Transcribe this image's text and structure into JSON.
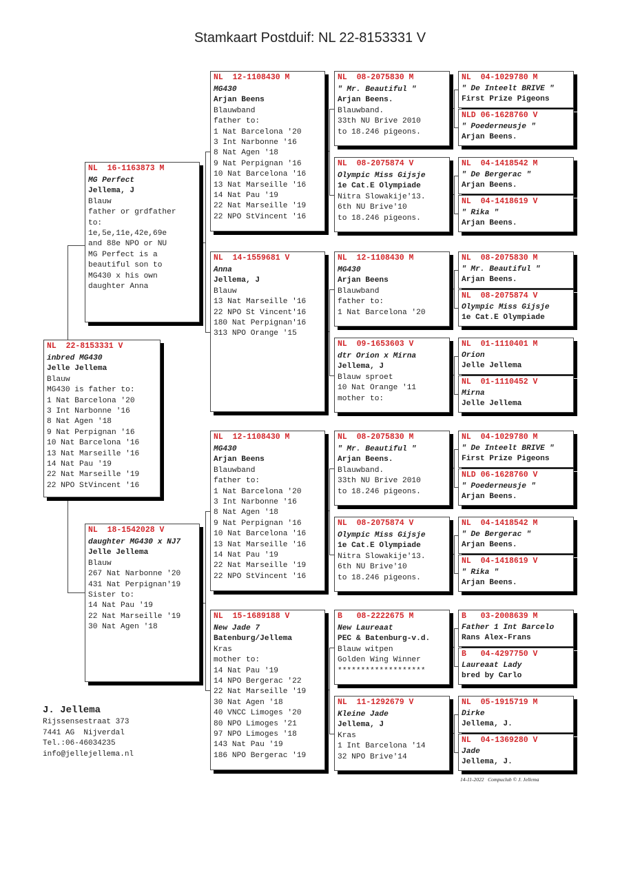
{
  "title": "Stamkaart Postduif: NL  22-8153331 V",
  "pedigree": {
    "subject": {
      "ring": "NL  22-8153331 V",
      "lines": [
        "inbred MG430",
        "Jelle Jellema",
        "Blauw",
        "MG430 is father to:",
        "1 Nat Barcelona '20",
        "3 Int Narbonne '16",
        "8 Nat Agen '18",
        "9 Nat Perpignan '16",
        "10 Nat Barcelona '16",
        "13 Nat Marseille '16",
        "14 Nat Pau '19",
        "22 Nat Marseille '19",
        "22 NPO StVincent '16"
      ]
    },
    "sire": {
      "ring": "NL  16-1163873 M",
      "lines": [
        "MG Perfect",
        "Jellema, J",
        "Blauw",
        "father or grdfather",
        "to:",
        "1e,5e,11e,42e,69e",
        "and 88e NPO or NU",
        "",
        "MG Perfect is a",
        "beautiful son to",
        "MG430 x his own",
        "daughter Anna"
      ]
    },
    "dam": {
      "ring": "NL  18-1542028 V",
      "lines": [
        "daughter MG430 x NJ7",
        "Jelle Jellema",
        "Blauw",
        "267 Nat Narbonne '20",
        "431 Nat Perpignan'19",
        "Sister to:",
        "14 Nat Pau '19",
        "22 Nat Marseille '19",
        "30 Nat Agen '18"
      ]
    },
    "gen3": [
      {
        "ring": "NL  12-1108430 M",
        "lines": [
          "MG430",
          "Arjan Beens",
          "Blauwband",
          "father to:",
          "1 Nat Barcelona '20",
          "3 Int Narbonne '16",
          "8 Nat Agen '18",
          "9 Nat Perpignan '16",
          "10 Nat Barcelona '16",
          "13 Nat Marseille '16",
          "14 Nat Pau '19",
          "22 Nat Marseille '19",
          "22 NPO StVincent '16"
        ]
      },
      {
        "ring": "NL  14-1559681 V",
        "lines": [
          "Anna",
          "Jellema, J",
          "Blauw",
          "13 Nat Marseille '16",
          "22 NPO St Vincent'16",
          "180 Nat Perpignan'16",
          "313 NPO Orange '15"
        ]
      },
      {
        "ring": "NL  12-1108430 M",
        "lines": [
          "MG430",
          "Arjan Beens",
          "Blauwband",
          "father to:",
          "1 Nat Barcelona '20",
          "3 Int Narbonne '16",
          "8 Nat Agen '18",
          "9 Nat Perpignan '16",
          "10 Nat Barcelona '16",
          "13 Nat Marseille '16",
          "14 Nat Pau '19",
          "22 Nat Marseille '19",
          "22 NPO StVincent '16"
        ]
      },
      {
        "ring": "NL  15-1689188 V",
        "lines": [
          "New Jade 7",
          "Batenburg/Jellema",
          "Kras",
          "mother to:",
          "14 Nat Pau '19",
          "14 NPO Bergerac '22",
          "22 Nat Marseille '19",
          "30 Nat Agen '18",
          "40 VNCC Limoges '20",
          "80 NPO Limoges '21",
          "97 NPO Limoges '18",
          "143 Nat Pau '19",
          "186 NPO Bergerac '19"
        ]
      }
    ],
    "gen4": [
      {
        "ring": "NL  08-2075830 M",
        "lines": [
          "\" Mr. Beautiful \"",
          "Arjan Beens.",
          "Blauwband.",
          "33th NU Brive 2010",
          "to 18.246 pigeons."
        ]
      },
      {
        "ring": "NL  08-2075874 V",
        "lines": [
          "Olympic Miss Gijsje",
          "1e Cat.E Olympiade",
          "Nitra Slowakije'13.",
          "6th NU Brive'10",
          "to 18.246 pigeons."
        ]
      },
      {
        "ring": "NL  12-1108430 M",
        "lines": [
          "MG430",
          "Arjan Beens",
          "Blauwband",
          "father to:",
          "1 Nat Barcelona '20"
        ]
      },
      {
        "ring": "NL  09-1653603 V",
        "lines": [
          "dtr Orion x Mirna",
          "Jellema, J",
          "Blauw sproet",
          "10 Nat Orange '11",
          "mother to:"
        ]
      },
      {
        "ring": "NL  08-2075830 M",
        "lines": [
          "\" Mr. Beautiful \"",
          "Arjan Beens.",
          "Blauwband.",
          "33th NU Brive 2010",
          "to 18.246 pigeons."
        ]
      },
      {
        "ring": "NL  08-2075874 V",
        "lines": [
          "Olympic Miss Gijsje",
          "1e Cat.E Olympiade",
          "Nitra Slowakije'13.",
          "6th NU Brive'10",
          "to 18.246 pigeons."
        ]
      },
      {
        "ring": "B   08-2222675 M",
        "lines": [
          "New Laureaat",
          "PEC & Batenburg-v.d.",
          "Blauw witpen",
          "Golden Wing Winner",
          "*******************"
        ]
      },
      {
        "ring": "NL  11-1292679 V",
        "lines": [
          "Kleine Jade",
          "Jellema, J",
          "Kras",
          "1 Int Barcelona '14",
          "32 NPO Brive'14"
        ]
      }
    ],
    "gen5": [
      {
        "ring": "NL  04-1029780 M",
        "lines": [
          "\" De Inteelt BRIVE \"",
          "First Prize Pigeons"
        ]
      },
      {
        "ring": "NLD 06-1628760 V",
        "lines": [
          "\" Poederneusje \"",
          "Arjan Beens."
        ]
      },
      {
        "ring": "NL  04-1418542 M",
        "lines": [
          "\" De Bergerac \"",
          "Arjan Beens."
        ]
      },
      {
        "ring": "NL  04-1418619 V",
        "lines": [
          "\" Rika \"",
          "Arjan Beens."
        ]
      },
      {
        "ring": "NL  08-2075830 M",
        "lines": [
          "\" Mr. Beautiful \"",
          "Arjan Beens."
        ]
      },
      {
        "ring": "NL  08-2075874 V",
        "lines": [
          "Olympic Miss Gijsje",
          "1e Cat.E Olympiade"
        ]
      },
      {
        "ring": "NL  01-1110401 M",
        "lines": [
          "Orion",
          "Jelle Jellema"
        ]
      },
      {
        "ring": "NL  01-1110452 V",
        "lines": [
          "Mirna",
          "Jelle Jellema"
        ]
      },
      {
        "ring": "NL  04-1029780 M",
        "lines": [
          "\" De Inteelt BRIVE \"",
          "First Prize Pigeons"
        ]
      },
      {
        "ring": "NLD 06-1628760 V",
        "lines": [
          "\" Poederneusje \"",
          "Arjan Beens."
        ]
      },
      {
        "ring": "NL  04-1418542 M",
        "lines": [
          "\" De Bergerac \"",
          "Arjan Beens."
        ]
      },
      {
        "ring": "NL  04-1418619 V",
        "lines": [
          "\" Rika \"",
          "Arjan Beens."
        ]
      },
      {
        "ring": "B   03-2008639 M",
        "lines": [
          "Father 1 Int Barcelo",
          "Rans Alex-Frans"
        ]
      },
      {
        "ring": "B   04-4297750 V",
        "lines": [
          "Laureaat Lady",
          "bred by Carlo"
        ]
      },
      {
        "ring": "NL  05-1915719 M",
        "lines": [
          "Dirke",
          "Jellema, J."
        ]
      },
      {
        "ring": "NL  04-1369280 V",
        "lines": [
          "Jade",
          "Jellema, J."
        ]
      }
    ]
  },
  "owner": {
    "name": "J. Jellema",
    "address": "Rijssensestraat 373",
    "city": "7441 AG  Nijverdal",
    "phone": "Tel.:06-46034235",
    "email": "info@jellejellema.nl"
  },
  "footer": "14-11-2022   Compuclub © J. Jellema",
  "colors": {
    "ring": "#d2282c",
    "shadow": "#000000"
  }
}
